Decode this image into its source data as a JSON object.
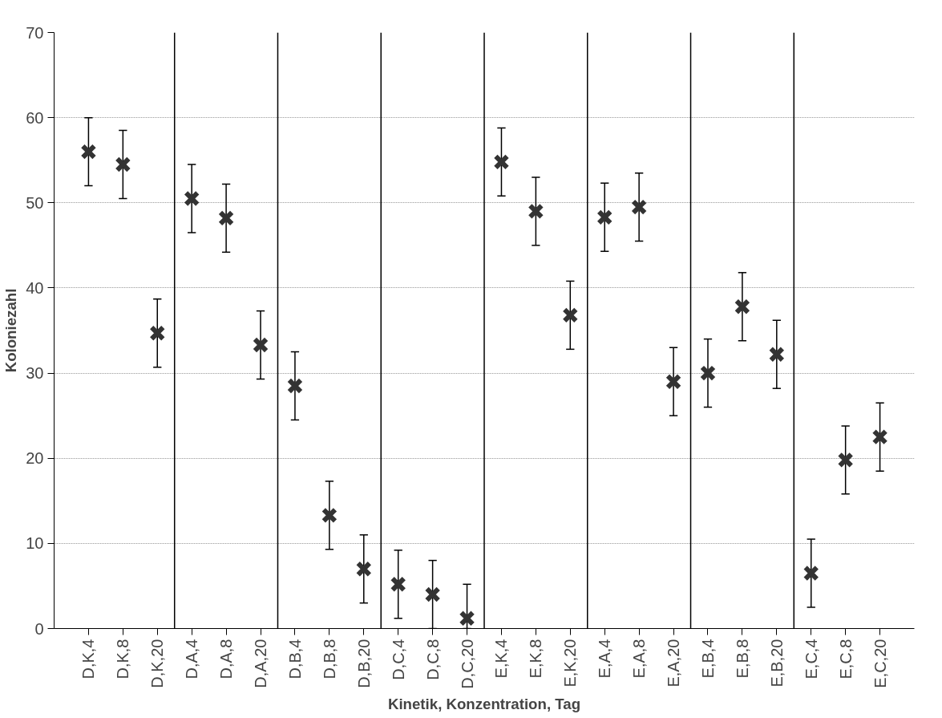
{
  "chart_data": {
    "type": "scatter",
    "xlabel": "Kinetik, Konzentration, Tag",
    "ylabel": "Koloniezahl",
    "categories": [
      "D,K,4",
      "D,K,8",
      "D,K,20",
      "D,A,4",
      "D,A,8",
      "D,A,20",
      "D,B,4",
      "D,B,8",
      "D,B,20",
      "D,C,4",
      "D,C,8",
      "D,C,20",
      "E,K,4",
      "E,K,8",
      "E,K,20",
      "E,A,4",
      "E,A,8",
      "E,A,20",
      "E,B,4",
      "E,B,8",
      "E,B,20",
      "E,C,4",
      "E,C,8",
      "E,C,20"
    ],
    "series": [
      {
        "color": "#333333",
        "values": [
          56.0,
          54.5,
          34.7,
          50.5,
          48.2,
          33.3,
          28.5,
          13.3,
          7.0,
          5.2,
          4.0,
          1.2,
          54.8,
          49.0,
          36.8,
          48.3,
          49.5,
          29.0,
          30.0,
          37.8,
          32.2,
          6.5,
          19.8,
          22.5
        ],
        "errors": [
          4,
          4,
          4,
          4,
          4,
          4,
          4,
          4,
          4,
          4,
          4,
          [
            0,
            5.2
          ],
          4,
          4,
          4,
          4,
          4,
          4,
          4,
          4,
          4,
          4,
          4,
          4
        ]
      }
    ],
    "ylim": [
      0,
      70
    ],
    "yticks": [
      0,
      10,
      20,
      30,
      40,
      50,
      60,
      70
    ],
    "grid": "y",
    "marker": "cross"
  }
}
